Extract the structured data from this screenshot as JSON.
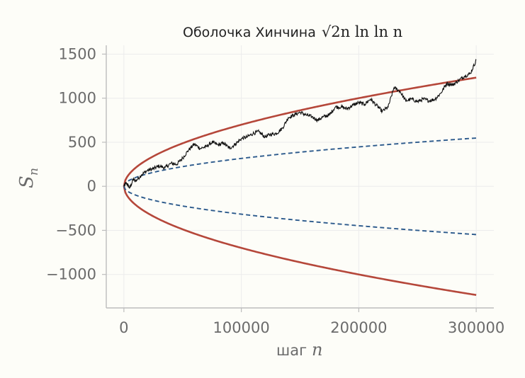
{
  "chart_data": {
    "type": "line",
    "title": "Оболочка Хинчина",
    "title_formula": "√2n ln ln n",
    "xlabel": "шаг",
    "xlabel_var": "n",
    "ylabel": "S",
    "ylabel_sub": "n",
    "xlim": [
      -15000,
      315000
    ],
    "ylim": [
      -1380,
      1600
    ],
    "x_ticks": [
      0,
      100000,
      200000,
      300000
    ],
    "x_tick_labels": [
      "0",
      "100000",
      "200000",
      "300000"
    ],
    "y_ticks": [
      1500,
      1000,
      500,
      0,
      -500,
      -1000
    ],
    "y_tick_labels": [
      "1500",
      "1000",
      "500",
      "0",
      "−500",
      "−1000"
    ],
    "grid": true,
    "series": [
      {
        "style": "solid",
        "color": "#b5473a",
        "formula": "±sqrt(2 n ln ln n)",
        "x": [
          0,
          500,
          2000,
          5000,
          10000,
          20000,
          40000,
          60000,
          80000,
          100000,
          130000,
          160000,
          200000,
          240000,
          270000,
          300000
        ],
        "y_upper": [
          0,
          60,
          116,
          210,
          260,
          380,
          470,
          560,
          630,
          700,
          800,
          890,
          990,
          1080,
          1160,
          1230
        ],
        "y_lower": [
          0,
          -60,
          -116,
          -210,
          -260,
          -380,
          -470,
          -560,
          -630,
          -700,
          -800,
          -890,
          -990,
          -1080,
          -1160,
          -1230
        ]
      },
      {
        "style": "dashed",
        "color": "#2c5a8c",
        "formula": "±sqrt(n)",
        "x": [
          0,
          500,
          2000,
          5000,
          10000,
          20000,
          40000,
          60000,
          80000,
          100000,
          130000,
          160000,
          200000,
          240000,
          270000,
          300000
        ],
        "y_upper": [
          0,
          22,
          45,
          71,
          100,
          141,
          200,
          245,
          283,
          316,
          361,
          400,
          447,
          490,
          520,
          548
        ],
        "y_lower": [
          0,
          -22,
          -45,
          -71,
          -100,
          -141,
          -200,
          -245,
          -283,
          -316,
          -361,
          -400,
          -447,
          -490,
          -520,
          -548
        ]
      },
      {
        "style": "solid",
        "color": "#111111",
        "kind": "random-walk",
        "x": [
          0,
          2000,
          5000,
          8000,
          10000,
          15000,
          20000,
          25000,
          30000,
          35000,
          40000,
          45000,
          50000,
          55000,
          60000,
          65000,
          70000,
          75000,
          80000,
          85000,
          90000,
          95000,
          100000,
          105000,
          110000,
          115000,
          120000,
          125000,
          130000,
          135000,
          140000,
          145000,
          150000,
          155000,
          160000,
          165000,
          170000,
          175000,
          180000,
          185000,
          190000,
          195000,
          200000,
          205000,
          210000,
          215000,
          220000,
          225000,
          230000,
          235000,
          240000,
          245000,
          250000,
          255000,
          260000,
          265000,
          270000,
          275000,
          280000,
          285000,
          290000,
          295000,
          300000
        ],
        "y": [
          0,
          40,
          -20,
          80,
          60,
          130,
          180,
          200,
          230,
          210,
          260,
          250,
          320,
          410,
          480,
          430,
          450,
          500,
          470,
          490,
          430,
          480,
          540,
          560,
          600,
          620,
          560,
          590,
          600,
          660,
          780,
          810,
          840,
          810,
          790,
          750,
          790,
          810,
          900,
          900,
          880,
          920,
          950,
          930,
          990,
          920,
          850,
          900,
          1120,
          1080,
          970,
          990,
          960,
          990,
          970,
          990,
          1060,
          1170,
          1150,
          1200,
          1250,
          1280,
          1430
        ]
      }
    ]
  }
}
